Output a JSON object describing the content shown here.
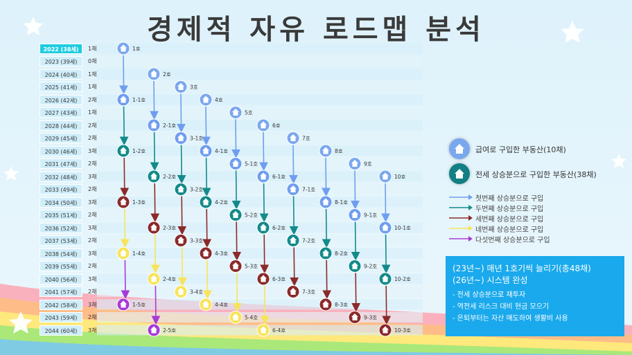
{
  "title": "경제적 자유 로드맵 분석",
  "timeline": [
    {
      "year": "2022 (38세)",
      "count": "1채"
    },
    {
      "year": "2023 (39세)",
      "count": "0채"
    },
    {
      "year": "2024 (40세)",
      "count": "1채"
    },
    {
      "year": "2025 (41세)",
      "count": "1채"
    },
    {
      "year": "2026 (42세)",
      "count": "2채"
    },
    {
      "year": "2027 (43세)",
      "count": "1채"
    },
    {
      "year": "2028 (44세)",
      "count": "2채"
    },
    {
      "year": "2029 (45세)",
      "count": "2채"
    },
    {
      "year": "2030 (46세)",
      "count": "3채"
    },
    {
      "year": "2031 (47세)",
      "count": "2채"
    },
    {
      "year": "2032 (48세)",
      "count": "3채"
    },
    {
      "year": "2033 (49세)",
      "count": "2채"
    },
    {
      "year": "2034 (50세)",
      "count": "3채"
    },
    {
      "year": "2035 (51세)",
      "count": "2채"
    },
    {
      "year": "2036 (52세)",
      "count": "3채"
    },
    {
      "year": "2037 (53세)",
      "count": "2채"
    },
    {
      "year": "2038 (54세)",
      "count": "3채"
    },
    {
      "year": "2039 (55세)",
      "count": "2채"
    },
    {
      "year": "2040 (56세)",
      "count": "3채"
    },
    {
      "year": "2041 (57세)",
      "count": "2채"
    },
    {
      "year": "2042 (58세)",
      "count": "3채"
    },
    {
      "year": "2043 (59세)",
      "count": "2채"
    },
    {
      "year": "2044 (60세)",
      "count": "3채"
    }
  ],
  "colors": {
    "salary": "#7aa8ee",
    "jeonse": "#127f84",
    "gen1": "#6f9ef0",
    "gen2": "#138a8a",
    "gen3": "#8b2a2a",
    "gen4": "#f7e45a",
    "gen5": "#a83ad6",
    "summary_bg": "#1aa9ec"
  },
  "houses": [
    {
      "label": "1호",
      "type": "salary",
      "row": 0,
      "col": 0,
      "gen": 0
    },
    {
      "label": "1-1호",
      "type": "jeonse",
      "row": 4,
      "col": 0,
      "gen": 1
    },
    {
      "label": "1-2호",
      "type": "jeonse",
      "row": 8,
      "col": 0,
      "gen": 2
    },
    {
      "label": "1-3호",
      "type": "jeonse",
      "row": 12,
      "col": 0,
      "gen": 3
    },
    {
      "label": "1-4호",
      "type": "jeonse",
      "row": 16,
      "col": 0,
      "gen": 4
    },
    {
      "label": "1-5호",
      "type": "jeonse",
      "row": 20,
      "col": 0,
      "gen": 5
    },
    {
      "label": "2호",
      "type": "salary",
      "row": 2,
      "col": 1,
      "gen": 0
    },
    {
      "label": "2-1호",
      "type": "jeonse",
      "row": 6,
      "col": 1,
      "gen": 1
    },
    {
      "label": "2-2호",
      "type": "jeonse",
      "row": 10,
      "col": 1,
      "gen": 2
    },
    {
      "label": "2-3호",
      "type": "jeonse",
      "row": 14,
      "col": 1,
      "gen": 3
    },
    {
      "label": "2-4호",
      "type": "jeonse",
      "row": 18,
      "col": 1,
      "gen": 4
    },
    {
      "label": "2-5호",
      "type": "jeonse",
      "row": 22,
      "col": 1,
      "gen": 5
    },
    {
      "label": "3호",
      "type": "salary",
      "row": 3,
      "col": 2,
      "gen": 0
    },
    {
      "label": "3-1호",
      "type": "jeonse",
      "row": 7,
      "col": 2,
      "gen": 1
    },
    {
      "label": "3-2호",
      "type": "jeonse",
      "row": 11,
      "col": 2,
      "gen": 2
    },
    {
      "label": "3-3호",
      "type": "jeonse",
      "row": 15,
      "col": 2,
      "gen": 3
    },
    {
      "label": "3-4호",
      "type": "jeonse",
      "row": 19,
      "col": 2,
      "gen": 4
    },
    {
      "label": "4호",
      "type": "salary",
      "row": 4,
      "col": 3,
      "gen": 0
    },
    {
      "label": "4-1호",
      "type": "jeonse",
      "row": 8,
      "col": 3,
      "gen": 1
    },
    {
      "label": "4-2호",
      "type": "jeonse",
      "row": 12,
      "col": 3,
      "gen": 2
    },
    {
      "label": "4-3호",
      "type": "jeonse",
      "row": 16,
      "col": 3,
      "gen": 3
    },
    {
      "label": "4-4호",
      "type": "jeonse",
      "row": 20,
      "col": 3,
      "gen": 4
    },
    {
      "label": "5호",
      "type": "salary",
      "row": 5,
      "col": 4,
      "gen": 0
    },
    {
      "label": "5-1호",
      "type": "jeonse",
      "row": 9,
      "col": 4,
      "gen": 1
    },
    {
      "label": "5-2호",
      "type": "jeonse",
      "row": 13,
      "col": 4,
      "gen": 2
    },
    {
      "label": "5-3호",
      "type": "jeonse",
      "row": 17,
      "col": 4,
      "gen": 3
    },
    {
      "label": "5-4호",
      "type": "jeonse",
      "row": 21,
      "col": 4,
      "gen": 4
    },
    {
      "label": "6호",
      "type": "salary",
      "row": 6,
      "col": 5,
      "gen": 0
    },
    {
      "label": "6-1호",
      "type": "jeonse",
      "row": 10,
      "col": 5,
      "gen": 1
    },
    {
      "label": "6-2호",
      "type": "jeonse",
      "row": 14,
      "col": 5,
      "gen": 2
    },
    {
      "label": "6-3호",
      "type": "jeonse",
      "row": 18,
      "col": 5,
      "gen": 3
    },
    {
      "label": "6-4호",
      "type": "jeonse",
      "row": 22,
      "col": 5,
      "gen": 4
    },
    {
      "label": "7호",
      "type": "salary",
      "row": 7,
      "col": 6,
      "gen": 0
    },
    {
      "label": "7-1호",
      "type": "jeonse",
      "row": 11,
      "col": 6,
      "gen": 1
    },
    {
      "label": "7-2호",
      "type": "jeonse",
      "row": 15,
      "col": 6,
      "gen": 2
    },
    {
      "label": "7-3호",
      "type": "jeonse",
      "row": 19,
      "col": 6,
      "gen": 3
    },
    {
      "label": "8호",
      "type": "salary",
      "row": 8,
      "col": 7,
      "gen": 0
    },
    {
      "label": "8-1호",
      "type": "jeonse",
      "row": 12,
      "col": 7,
      "gen": 1
    },
    {
      "label": "8-2호",
      "type": "jeonse",
      "row": 16,
      "col": 7,
      "gen": 2
    },
    {
      "label": "8-3호",
      "type": "jeonse",
      "row": 20,
      "col": 7,
      "gen": 3
    },
    {
      "label": "9호",
      "type": "salary",
      "row": 9,
      "col": 8,
      "gen": 0
    },
    {
      "label": "9-1호",
      "type": "jeonse",
      "row": 13,
      "col": 8,
      "gen": 1
    },
    {
      "label": "9-2호",
      "type": "jeonse",
      "row": 17,
      "col": 8,
      "gen": 2
    },
    {
      "label": "9-3호",
      "type": "jeonse",
      "row": 21,
      "col": 8,
      "gen": 3
    },
    {
      "label": "10호",
      "type": "salary",
      "row": 10,
      "col": 9,
      "gen": 0
    },
    {
      "label": "10-1호",
      "type": "jeonse",
      "row": 14,
      "col": 9,
      "gen": 1
    },
    {
      "label": "10-2호",
      "type": "jeonse",
      "row": 18,
      "col": 9,
      "gen": 2
    },
    {
      "label": "10-3호",
      "type": "jeonse",
      "row": 22,
      "col": 9,
      "gen": 3
    }
  ],
  "legend": {
    "salary_label": "급여로 구입한 부동산(10채)",
    "jeonse_label": "전세 상승분으로 구입한 부동산(38채)",
    "arrows": [
      {
        "label": "첫번째 상승분으로 구입",
        "color": "#6f9ef0"
      },
      {
        "label": "두번째 상승분으로 구입",
        "color": "#138a8a"
      },
      {
        "label": "세번째 상승분으로 구입",
        "color": "#8b2a2a"
      },
      {
        "label": "네번째 상승분으로 구입",
        "color": "#f7e45a"
      },
      {
        "label": "다섯번째 상승분으로 구입",
        "color": "#a83ad6"
      }
    ]
  },
  "summary": {
    "line1": "(23년~) 매년 1호기씩 늘리기(총48채)",
    "line2": "(26년~) 시스템 완성",
    "bullets": [
      "전세 상승분으로 재투자",
      "역전세 리스크 대비 현금 모으기",
      "은퇴부터는 자산 매도하여 생활비 사용"
    ]
  }
}
